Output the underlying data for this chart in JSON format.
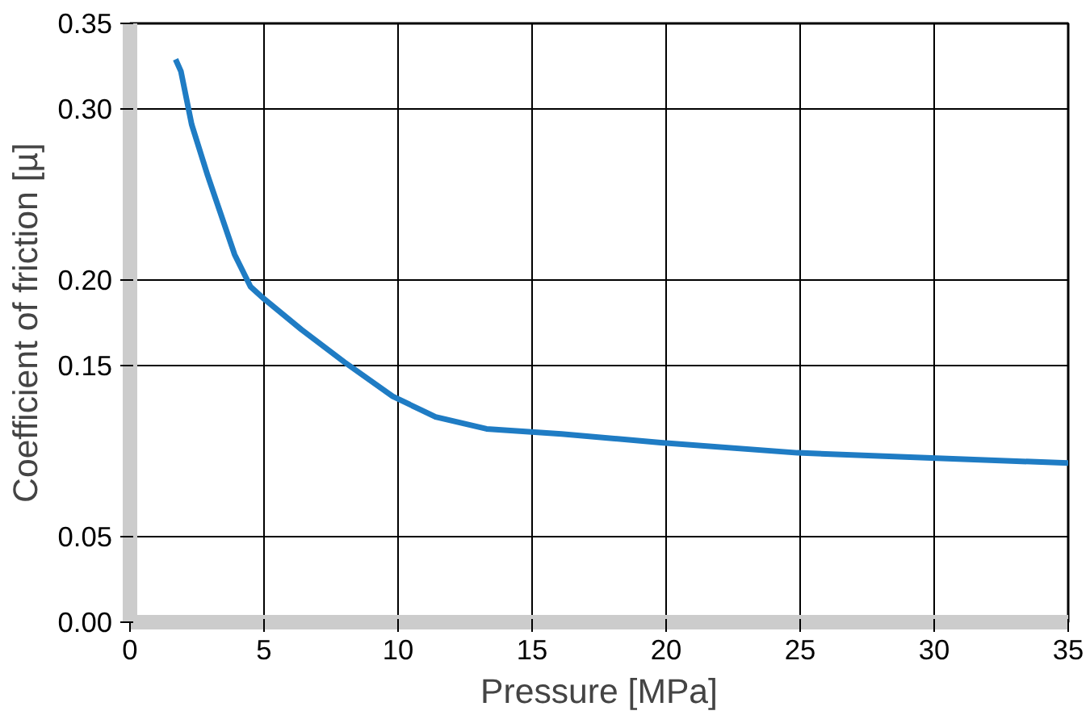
{
  "chart_data": {
    "type": "line",
    "xlabel": "Pressure [MPa]",
    "ylabel": "Coefficient of friction [µ]",
    "x": [
      1.7,
      1.9,
      2.3,
      2.9,
      3.9,
      4.5,
      5.0,
      6.4,
      8.0,
      9.8,
      11.4,
      13.3,
      16.1,
      19.8,
      24.9,
      29.9,
      35
    ],
    "series": [
      {
        "color": "#1f7cc4",
        "values": [
          0.329,
          0.322,
          0.291,
          0.261,
          0.215,
          0.196,
          0.189,
          0.171,
          0.152,
          0.132,
          0.12,
          0.113,
          0.11,
          0.105,
          0.099,
          0.096,
          0.093
        ]
      }
    ],
    "xlim": [
      0,
      35
    ],
    "xticks": [
      0,
      5,
      10,
      15,
      20,
      25,
      30,
      35
    ],
    "ylim": [
      0,
      0.35
    ],
    "yticks": [
      {
        "value": 0,
        "label": "0.00"
      },
      {
        "value": 0.05,
        "label": "0.05"
      },
      {
        "value": 0.15,
        "label": "0.15"
      },
      {
        "value": 0.2,
        "label": "0.20"
      },
      {
        "value": 0.3,
        "label": "0.30"
      },
      {
        "value": 0.35,
        "label": "0.35"
      }
    ],
    "grid": true,
    "marker": "none",
    "line_style": "solid"
  }
}
